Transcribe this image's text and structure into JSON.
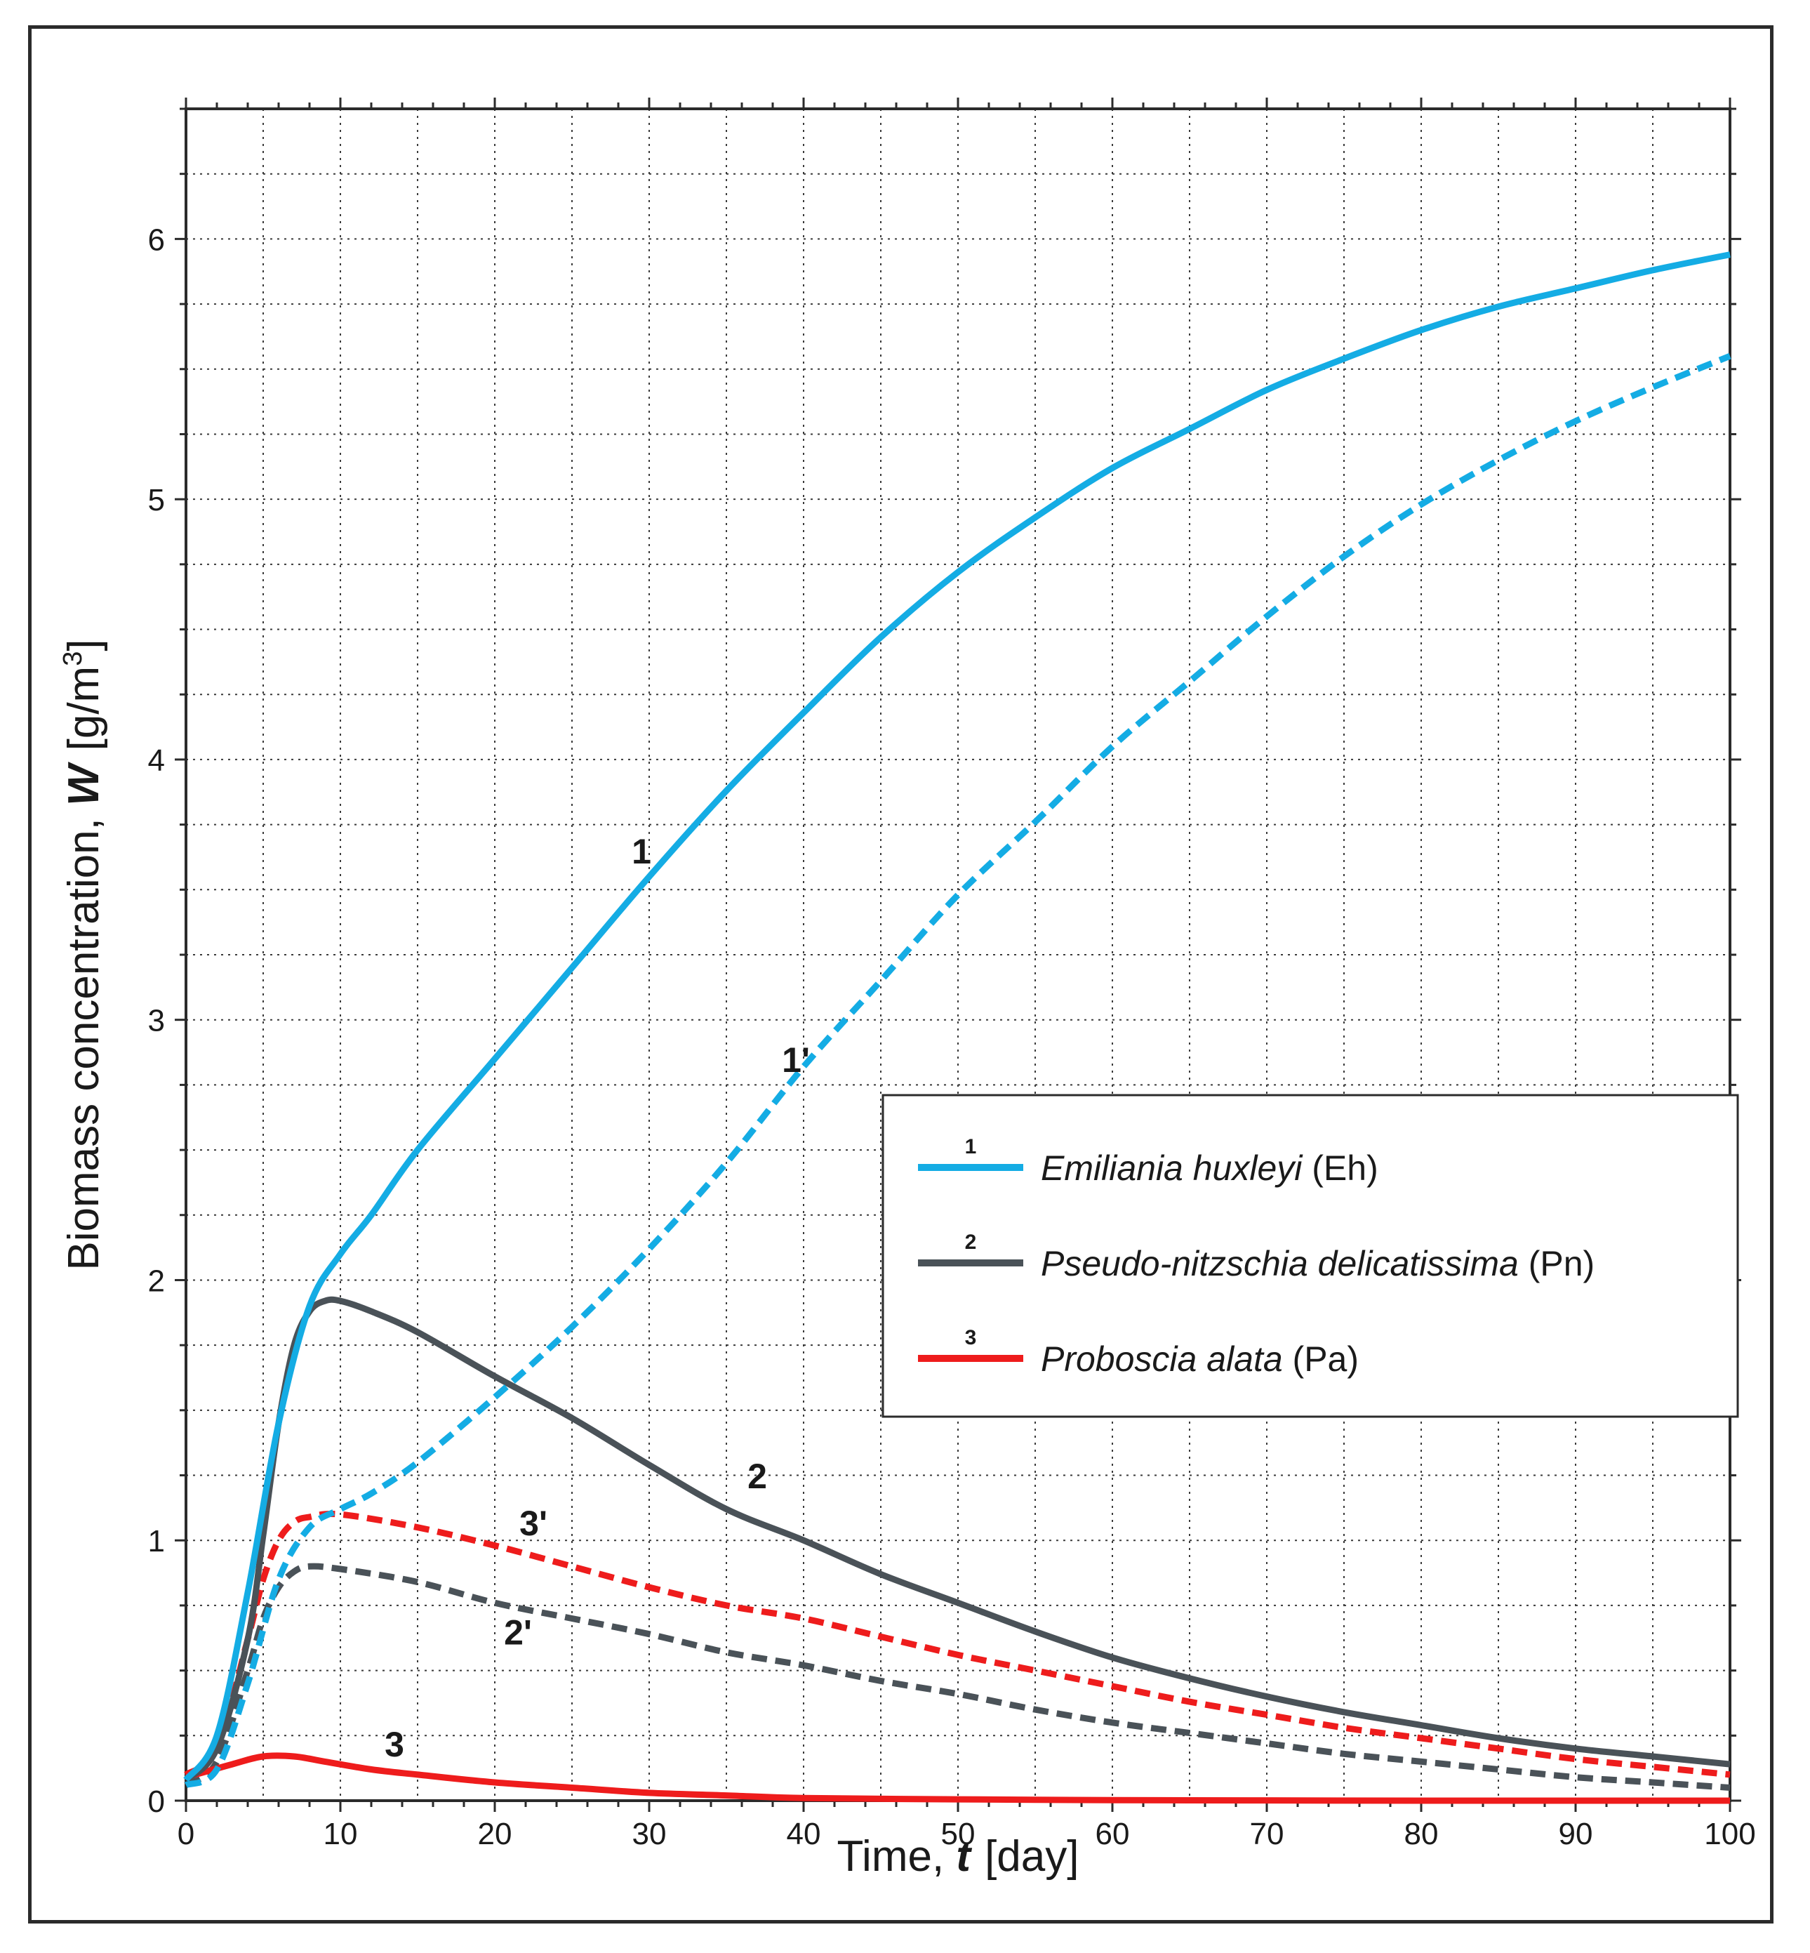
{
  "chart_data": {
    "type": "line",
    "xlabel": {
      "prefix": "Time, ",
      "variable": "t",
      "unit": "[day]"
    },
    "ylabel": {
      "prefix": "Biomass concentration, ",
      "variable": "W",
      "unit": "[g/m",
      "unit_sup": "3",
      "unit_close": "]"
    },
    "xlim": [
      0,
      100
    ],
    "ylim": [
      0,
      6.5
    ],
    "x_ticks": [
      0,
      10,
      20,
      30,
      40,
      50,
      60,
      70,
      80,
      90,
      100
    ],
    "y_ticks": [
      0,
      1,
      2,
      3,
      4,
      5,
      6
    ],
    "grid": true,
    "legend_position": "center-right",
    "legend": [
      {
        "num": "1",
        "italic": "Emiliania huxleyi",
        "suffix": " (Eh)",
        "color": "#14ace4"
      },
      {
        "num": "2",
        "italic": "Pseudo-nitzschia delicatissima",
        "suffix": " (Pn)",
        "color": "#4a5258"
      },
      {
        "num": "3",
        "italic": "Proboscia alata",
        "suffix": " (Pa)",
        "color": "#ee1c1c"
      }
    ],
    "series": [
      {
        "name": "1",
        "species": "Emiliania huxleyi",
        "style": "solid",
        "color": "#14ace4",
        "x": [
          0,
          2,
          4,
          6,
          8,
          10,
          12,
          15,
          20,
          25,
          30,
          35,
          40,
          45,
          50,
          55,
          60,
          65,
          70,
          75,
          80,
          85,
          90,
          95,
          100
        ],
        "y": [
          0.08,
          0.25,
          0.8,
          1.45,
          1.9,
          2.1,
          2.25,
          2.5,
          2.85,
          3.2,
          3.55,
          3.88,
          4.18,
          4.47,
          4.72,
          4.93,
          5.12,
          5.27,
          5.42,
          5.54,
          5.65,
          5.74,
          5.81,
          5.88,
          5.94
        ]
      },
      {
        "name": "1'",
        "species": "Emiliania huxleyi",
        "style": "dashed",
        "color": "#14ace4",
        "x": [
          0,
          2,
          4,
          6,
          8,
          10,
          12,
          15,
          20,
          25,
          30,
          35,
          40,
          45,
          50,
          55,
          60,
          65,
          70,
          75,
          80,
          85,
          90,
          95,
          100
        ],
        "y": [
          0.06,
          0.12,
          0.45,
          0.85,
          1.05,
          1.12,
          1.18,
          1.3,
          1.55,
          1.82,
          2.12,
          2.45,
          2.82,
          3.15,
          3.48,
          3.76,
          4.05,
          4.3,
          4.55,
          4.78,
          4.98,
          5.15,
          5.3,
          5.43,
          5.55
        ]
      },
      {
        "name": "2",
        "species": "Pseudo-nitzschia delicatissima",
        "style": "solid",
        "color": "#4a5258",
        "x": [
          0,
          2,
          4,
          5,
          6,
          7,
          8,
          9,
          10,
          12,
          15,
          20,
          25,
          30,
          35,
          40,
          45,
          50,
          55,
          60,
          65,
          70,
          75,
          80,
          85,
          90,
          95,
          100
        ],
        "y": [
          0.08,
          0.2,
          0.62,
          1.02,
          1.45,
          1.75,
          1.88,
          1.92,
          1.92,
          1.88,
          1.8,
          1.63,
          1.47,
          1.29,
          1.12,
          1.0,
          0.87,
          0.76,
          0.65,
          0.55,
          0.47,
          0.4,
          0.34,
          0.29,
          0.24,
          0.2,
          0.17,
          0.14
        ]
      },
      {
        "name": "2'",
        "species": "Pseudo-nitzschia delicatissima",
        "style": "dashed",
        "color": "#4a5258",
        "x": [
          0,
          2,
          4,
          5,
          6,
          7,
          8,
          10,
          15,
          20,
          25,
          30,
          35,
          40,
          45,
          50,
          55,
          60,
          65,
          70,
          75,
          80,
          85,
          90,
          95,
          100
        ],
        "y": [
          0.06,
          0.15,
          0.5,
          0.7,
          0.82,
          0.88,
          0.9,
          0.89,
          0.84,
          0.76,
          0.7,
          0.64,
          0.57,
          0.52,
          0.46,
          0.41,
          0.35,
          0.3,
          0.26,
          0.22,
          0.18,
          0.15,
          0.12,
          0.09,
          0.07,
          0.05
        ]
      },
      {
        "name": "3",
        "species": "Proboscia alata",
        "style": "solid",
        "color": "#ee1c1c",
        "x": [
          0,
          3,
          5,
          7,
          9,
          12,
          15,
          20,
          25,
          30,
          35,
          40,
          50,
          60,
          70,
          80,
          90,
          100
        ],
        "y": [
          0.09,
          0.14,
          0.17,
          0.17,
          0.15,
          0.12,
          0.1,
          0.07,
          0.05,
          0.03,
          0.02,
          0.01,
          0.005,
          0.002,
          0.001,
          0.0,
          0.0,
          0.0
        ]
      },
      {
        "name": "3'",
        "species": "Proboscia alata",
        "style": "dashed",
        "color": "#ee1c1c",
        "x": [
          0,
          2,
          4,
          5,
          6,
          7,
          8,
          10,
          15,
          20,
          25,
          30,
          35,
          40,
          45,
          50,
          55,
          60,
          65,
          70,
          75,
          80,
          85,
          90,
          95,
          100
        ],
        "y": [
          0.1,
          0.2,
          0.62,
          0.85,
          1.0,
          1.07,
          1.09,
          1.1,
          1.05,
          0.98,
          0.9,
          0.82,
          0.75,
          0.7,
          0.63,
          0.56,
          0.5,
          0.44,
          0.38,
          0.33,
          0.28,
          0.24,
          0.2,
          0.16,
          0.13,
          0.1
        ]
      }
    ],
    "annotations": [
      {
        "text": "1",
        "x": 29.5,
        "y": 3.6
      },
      {
        "text": "1'",
        "x": 39.5,
        "y": 2.8
      },
      {
        "text": "2",
        "x": 37,
        "y": 1.2
      },
      {
        "text": "2'",
        "x": 21.5,
        "y": 0.6
      },
      {
        "text": "3",
        "x": 13.5,
        "y": 0.17
      },
      {
        "text": "3'",
        "x": 22.5,
        "y": 1.02
      }
    ]
  }
}
